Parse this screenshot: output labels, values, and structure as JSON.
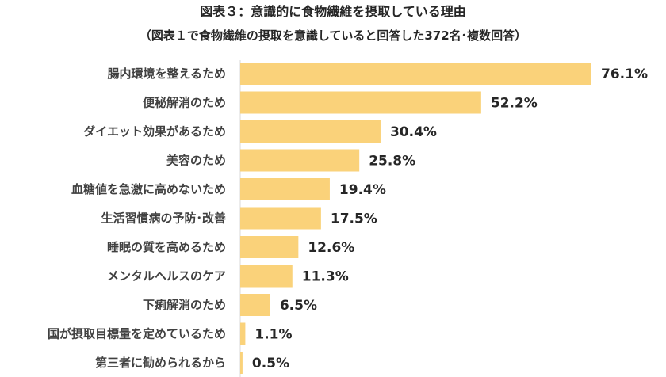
{
  "chart_data": {
    "type": "bar",
    "orientation": "horizontal",
    "title": "図表３：意識的に食物繊維を摂取している理由",
    "subtitle": "（図表１で食物繊維の摂取を意識していると回答した372名･複数回答）",
    "categories": [
      "腸内環境を整えるため",
      "便秘解消のため",
      "ダイエット効果があるため",
      "美容のため",
      "血糖値を急激に高めないため",
      "生活習慣病の予防･改善",
      "睡眠の質を高めるため",
      "メンタルヘルスのケア",
      "下痢解消のため",
      "国が摂取目標量を定めているため",
      "第三者に勧められるから"
    ],
    "values": [
      76.1,
      52.2,
      30.4,
      25.8,
      19.4,
      17.5,
      12.6,
      11.3,
      6.5,
      1.1,
      0.5
    ],
    "value_labels": [
      "76.1%",
      "52.2%",
      "30.4%",
      "25.8%",
      "19.4%",
      "17.5%",
      "12.6%",
      "11.3%",
      "6.5%",
      "1.1%",
      "0.5%"
    ],
    "xlim": [
      0,
      100
    ],
    "grid": false,
    "legend": "none",
    "bar_color": "#fad27a",
    "axis_color": "#d9d9d9"
  }
}
